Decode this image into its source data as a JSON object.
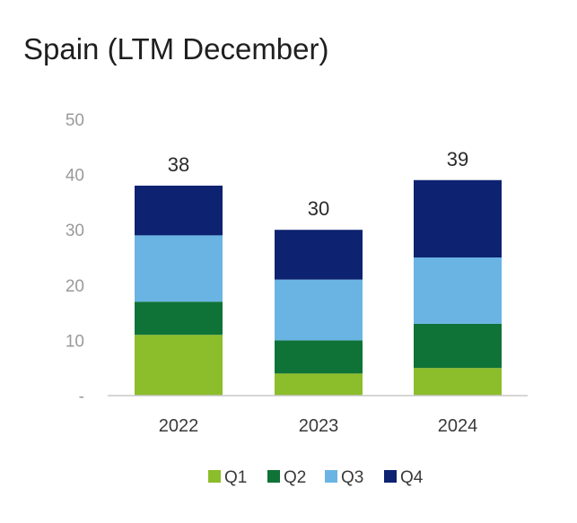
{
  "chart_data": {
    "type": "bar",
    "stacked": true,
    "title": "Spain (LTM December)",
    "xlabel": "",
    "ylabel": "",
    "categories": [
      "2022",
      "2023",
      "2024"
    ],
    "series": [
      {
        "name": "Q1",
        "color": "#8cbd2a",
        "values": [
          11,
          4,
          5
        ]
      },
      {
        "name": "Q2",
        "color": "#0f7337",
        "values": [
          6,
          6,
          8
        ]
      },
      {
        "name": "Q3",
        "color": "#6ab4e4",
        "values": [
          12,
          11,
          12
        ]
      },
      {
        "name": "Q4",
        "color": "#0d2270",
        "values": [
          9,
          9,
          14
        ]
      }
    ],
    "totals": [
      "38",
      "30",
      "39"
    ],
    "ylim": [
      0,
      50
    ],
    "yticks": [
      {
        "value": 0,
        "label": "-"
      },
      {
        "value": 10,
        "label": "10"
      },
      {
        "value": 20,
        "label": "20"
      },
      {
        "value": 30,
        "label": "30"
      },
      {
        "value": 40,
        "label": "40"
      },
      {
        "value": 50,
        "label": "50"
      }
    ],
    "grid": false,
    "legend_position": "bottom-center"
  }
}
